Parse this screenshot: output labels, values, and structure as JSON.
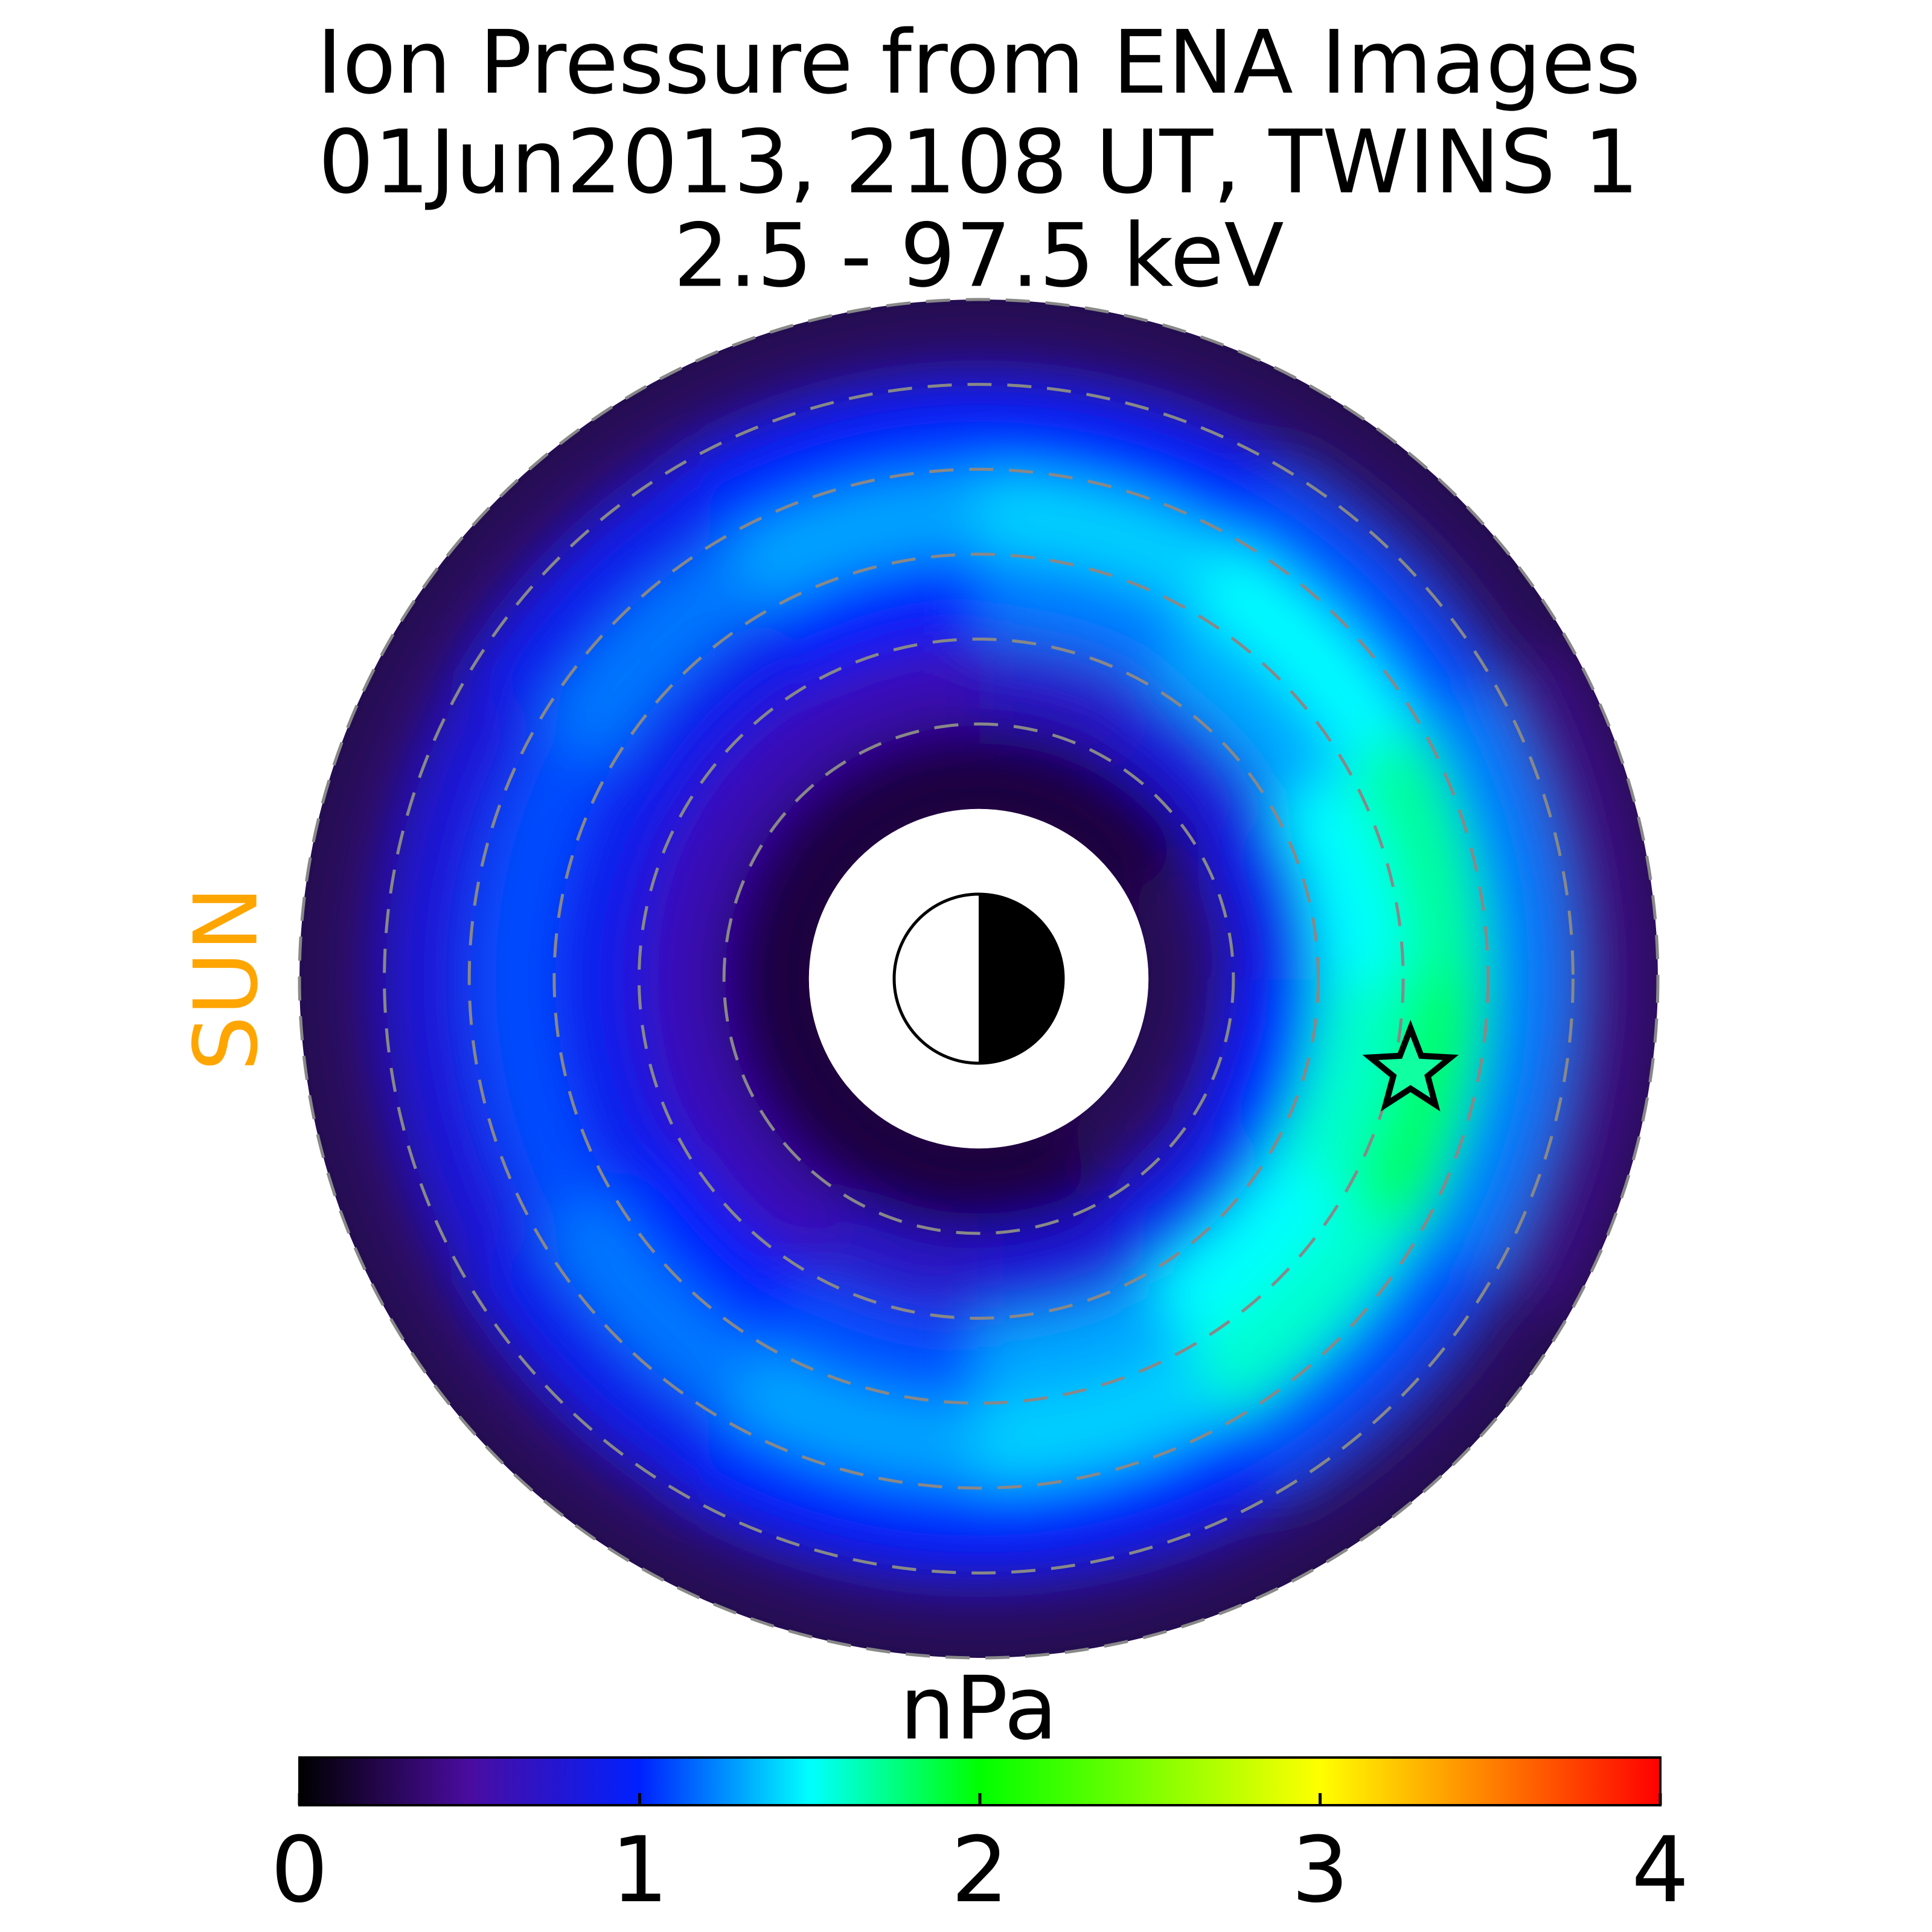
{
  "chart_data": {
    "type": "polar-map",
    "title": [
      "Ion Pressure from  ENA Images",
      "01Jun2013, 2108 UT,  TWINS 1",
      "2.5 - 97.5 keV"
    ],
    "sun_label": "SUN",
    "colorbar_label": "nPa",
    "clim": [
      0,
      4
    ],
    "cticks": [
      0,
      1,
      2,
      3,
      4
    ],
    "colorscale": [
      [
        0,
        "#000000"
      ],
      [
        0.5,
        "#4a0ca0"
      ],
      [
        1,
        "#0020ff"
      ],
      [
        1.5,
        "#00ffff"
      ],
      [
        2,
        "#00ff00"
      ],
      [
        3,
        "#ffff00"
      ],
      [
        3.5,
        "#ff8000"
      ],
      [
        4,
        "#ff0000"
      ]
    ],
    "rlim": [
      2,
      8
    ],
    "rgrid": [
      3,
      4,
      5,
      6,
      7,
      8
    ],
    "r_bins": [
      2,
      3,
      4,
      5,
      6,
      7,
      8
    ],
    "angle_bins": [
      0,
      30,
      60,
      90,
      120,
      150,
      180,
      210,
      240,
      270,
      300,
      330,
      360
    ],
    "values": [
      [
        0.2,
        0.6,
        0.9,
        1.1,
        0.8,
        0.3
      ],
      [
        0.2,
        0.6,
        1.0,
        1.2,
        0.9,
        0.3
      ],
      [
        0.2,
        0.7,
        1.1,
        1.3,
        1.0,
        0.3
      ],
      [
        0.2,
        0.8,
        1.3,
        1.4,
        1.0,
        0.3
      ],
      [
        0.3,
        0.9,
        1.5,
        1.6,
        1.1,
        0.3
      ],
      [
        0.3,
        1.0,
        1.6,
        1.8,
        1.2,
        0.4
      ],
      [
        0.3,
        0.9,
        1.5,
        1.7,
        1.2,
        0.4
      ],
      [
        0.2,
        0.8,
        1.3,
        1.5,
        1.1,
        0.3
      ],
      [
        0.2,
        0.7,
        1.2,
        1.4,
        1.0,
        0.3
      ],
      [
        0.2,
        0.6,
        1.0,
        1.3,
        1.0,
        0.3
      ],
      [
        0.2,
        0.6,
        0.9,
        1.2,
        0.9,
        0.3
      ],
      [
        0.2,
        0.6,
        0.9,
        1.1,
        0.8,
        0.3
      ]
    ],
    "satellite_position": {
      "r": 5.2,
      "angle": 168
    }
  }
}
